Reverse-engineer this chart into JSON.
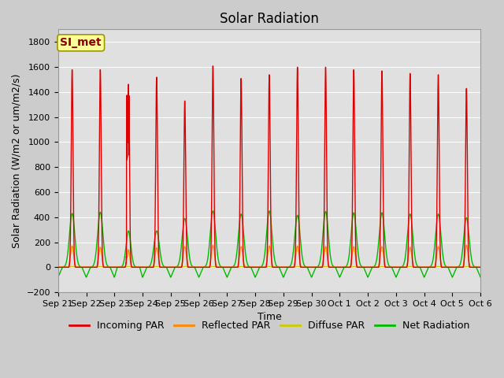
{
  "title": "Solar Radiation",
  "ylabel": "Solar Radiation (W/m2 or um/m2/s)",
  "xlabel": "Time",
  "ylim": [
    -200,
    1900
  ],
  "yticks": [
    -200,
    0,
    200,
    400,
    600,
    800,
    1000,
    1200,
    1400,
    1600,
    1800
  ],
  "plot_bg_color": "#e0e0e0",
  "fig_bg_color": "#cccccc",
  "annotation_text": "SI_met",
  "annotation_bg": "#ffff99",
  "annotation_border": "#999900",
  "n_days": 15,
  "day_labels": [
    "Sep 21",
    "Sep 22",
    "Sep 23",
    "Sep 24",
    "Sep 25",
    "Sep 26",
    "Sep 27",
    "Sep 28",
    "Sep 29",
    "Sep 30",
    "Oct 1",
    "Oct 2",
    "Oct 3",
    "Oct 4",
    "Oct 5",
    "Oct 6"
  ],
  "incoming_color": "#dd0000",
  "reflected_color": "#ff8800",
  "diffuse_color": "#cccc00",
  "net_color": "#00bb00",
  "line_width": 1.0,
  "title_fontsize": 12,
  "label_fontsize": 9,
  "tick_fontsize": 8,
  "legend_fontsize": 9,
  "incoming_peaks": [
    1580,
    1580,
    1640,
    1520,
    1330,
    1610,
    1510,
    1540,
    1600,
    1600,
    1580,
    1570,
    1550,
    1540,
    1430
  ],
  "reflected_peaks": [
    170,
    160,
    140,
    155,
    165,
    175,
    165,
    170,
    170,
    165,
    165,
    165,
    160,
    165,
    175
  ],
  "net_peaks": [
    430,
    440,
    460,
    290,
    390,
    450,
    425,
    450,
    415,
    445,
    435,
    435,
    425,
    425,
    395
  ],
  "night_net": -80
}
